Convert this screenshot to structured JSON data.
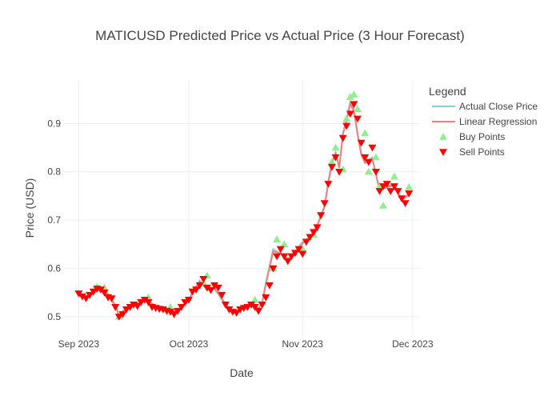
{
  "chart_data": {
    "type": "line",
    "title": "MATICUSD Predicted Price vs Actual Price (3 Hour Forecast)",
    "xlabel": "Date",
    "ylabel": "Price (USD)",
    "x_range": [
      "2023-08-28",
      "2023-12-03"
    ],
    "ylim": [
      0.46,
      0.99
    ],
    "x_ticks": [
      {
        "date": "2023-09-01",
        "label": "Sep 2023"
      },
      {
        "date": "2023-10-01",
        "label": "Oct 2023"
      },
      {
        "date": "2023-11-01",
        "label": "Nov 2023"
      },
      {
        "date": "2023-12-01",
        "label": "Dec 2023"
      }
    ],
    "y_ticks": [
      0.5,
      0.6,
      0.7,
      0.8,
      0.9
    ],
    "grid": true,
    "legend_title": "Legend",
    "legend_position": "right",
    "colors": {
      "actual": "#7fd4d4",
      "regression": "#f08080",
      "buy": "#90ee90",
      "sell": "#ff0000"
    },
    "series": [
      {
        "name": "Actual Close Price",
        "style": "line",
        "x": [
          "2023-09-01",
          "2023-09-03",
          "2023-09-05",
          "2023-09-07",
          "2023-09-09",
          "2023-09-11",
          "2023-09-12",
          "2023-09-13",
          "2023-09-15",
          "2023-09-17",
          "2023-09-19",
          "2023-09-21",
          "2023-09-23",
          "2023-09-25",
          "2023-09-27",
          "2023-09-29",
          "2023-10-01",
          "2023-10-02",
          "2023-10-04",
          "2023-10-06",
          "2023-10-08",
          "2023-10-10",
          "2023-10-12",
          "2023-10-14",
          "2023-10-16",
          "2023-10-18",
          "2023-10-20",
          "2023-10-21",
          "2023-10-22",
          "2023-10-24",
          "2023-10-26",
          "2023-10-28",
          "2023-10-30",
          "2023-11-01",
          "2023-11-03",
          "2023-11-05",
          "2023-11-07",
          "2023-11-08",
          "2023-11-09",
          "2023-11-10",
          "2023-11-11",
          "2023-11-12",
          "2023-11-13",
          "2023-11-14",
          "2023-11-15",
          "2023-11-16",
          "2023-11-17",
          "2023-11-18",
          "2023-11-20",
          "2023-11-22",
          "2023-11-24",
          "2023-11-26",
          "2023-11-28",
          "2023-11-30"
        ],
        "y": [
          0.545,
          0.54,
          0.55,
          0.56,
          0.545,
          0.52,
          0.505,
          0.51,
          0.52,
          0.525,
          0.535,
          0.525,
          0.515,
          0.515,
          0.51,
          0.52,
          0.535,
          0.55,
          0.575,
          0.555,
          0.56,
          0.535,
          0.515,
          0.51,
          0.52,
          0.525,
          0.515,
          0.53,
          0.57,
          0.64,
          0.63,
          0.62,
          0.635,
          0.655,
          0.665,
          0.69,
          0.73,
          0.78,
          0.82,
          0.84,
          0.81,
          0.88,
          0.91,
          0.945,
          0.93,
          0.88,
          0.84,
          0.82,
          0.83,
          0.76,
          0.77,
          0.775,
          0.74,
          0.755
        ]
      },
      {
        "name": "Linear Regression",
        "style": "line",
        "x": [
          "2023-09-01",
          "2023-09-03",
          "2023-09-05",
          "2023-09-07",
          "2023-09-09",
          "2023-09-11",
          "2023-09-12",
          "2023-09-13",
          "2023-09-15",
          "2023-09-17",
          "2023-09-19",
          "2023-09-21",
          "2023-09-23",
          "2023-09-25",
          "2023-09-27",
          "2023-09-29",
          "2023-10-01",
          "2023-10-02",
          "2023-10-04",
          "2023-10-06",
          "2023-10-08",
          "2023-10-10",
          "2023-10-12",
          "2023-10-14",
          "2023-10-16",
          "2023-10-18",
          "2023-10-20",
          "2023-10-21",
          "2023-10-22",
          "2023-10-24",
          "2023-10-26",
          "2023-10-28",
          "2023-10-30",
          "2023-11-01",
          "2023-11-03",
          "2023-11-05",
          "2023-11-07",
          "2023-11-08",
          "2023-11-09",
          "2023-11-10",
          "2023-11-11",
          "2023-11-12",
          "2023-11-13",
          "2023-11-14",
          "2023-11-15",
          "2023-11-16",
          "2023-11-17",
          "2023-11-18",
          "2023-11-20",
          "2023-11-22",
          "2023-11-24",
          "2023-11-26",
          "2023-11-28",
          "2023-11-30"
        ],
        "y": [
          0.547,
          0.542,
          0.548,
          0.558,
          0.547,
          0.523,
          0.503,
          0.512,
          0.518,
          0.527,
          0.533,
          0.527,
          0.517,
          0.513,
          0.512,
          0.518,
          0.533,
          0.552,
          0.572,
          0.557,
          0.558,
          0.537,
          0.517,
          0.508,
          0.518,
          0.527,
          0.517,
          0.528,
          0.567,
          0.635,
          0.632,
          0.618,
          0.633,
          0.652,
          0.662,
          0.688,
          0.728,
          0.775,
          0.818,
          0.838,
          0.808,
          0.878,
          0.905,
          0.94,
          0.925,
          0.877,
          0.835,
          0.818,
          0.827,
          0.762,
          0.768,
          0.772,
          0.742,
          0.753
        ]
      },
      {
        "name": "Buy Points",
        "style": "marker",
        "x": [
          "2023-09-06",
          "2023-09-08",
          "2023-09-12",
          "2023-09-20",
          "2023-09-26",
          "2023-10-05",
          "2023-10-06",
          "2023-10-19",
          "2023-10-24",
          "2023-10-25",
          "2023-10-27",
          "2023-11-01",
          "2023-11-04",
          "2023-11-09",
          "2023-11-10",
          "2023-11-12",
          "2023-11-13",
          "2023-11-14",
          "2023-11-15",
          "2023-11-16",
          "2023-11-18",
          "2023-11-19",
          "2023-11-21",
          "2023-11-22",
          "2023-11-23",
          "2023-11-26",
          "2023-11-30"
        ],
        "y": [
          0.562,
          0.56,
          0.5,
          0.54,
          0.52,
          0.57,
          0.585,
          0.535,
          0.6,
          0.66,
          0.65,
          0.64,
          0.67,
          0.82,
          0.85,
          0.805,
          0.91,
          0.955,
          0.96,
          0.93,
          0.88,
          0.8,
          0.83,
          0.77,
          0.73,
          0.79,
          0.768
        ]
      },
      {
        "name": "Sell Points",
        "style": "marker",
        "x": [
          "2023-09-01",
          "2023-09-02",
          "2023-09-03",
          "2023-09-04",
          "2023-09-05",
          "2023-09-06",
          "2023-09-07",
          "2023-09-08",
          "2023-09-09",
          "2023-09-10",
          "2023-09-11",
          "2023-09-12",
          "2023-09-13",
          "2023-09-14",
          "2023-09-15",
          "2023-09-16",
          "2023-09-17",
          "2023-09-18",
          "2023-09-19",
          "2023-09-20",
          "2023-09-21",
          "2023-09-22",
          "2023-09-23",
          "2023-09-24",
          "2023-09-25",
          "2023-09-26",
          "2023-09-27",
          "2023-09-28",
          "2023-09-29",
          "2023-09-30",
          "2023-10-01",
          "2023-10-02",
          "2023-10-03",
          "2023-10-04",
          "2023-10-05",
          "2023-10-06",
          "2023-10-07",
          "2023-10-08",
          "2023-10-09",
          "2023-10-10",
          "2023-10-11",
          "2023-10-12",
          "2023-10-13",
          "2023-10-14",
          "2023-10-15",
          "2023-10-16",
          "2023-10-17",
          "2023-10-18",
          "2023-10-19",
          "2023-10-20",
          "2023-10-21",
          "2023-10-22",
          "2023-10-23",
          "2023-10-24",
          "2023-10-25",
          "2023-10-26",
          "2023-10-27",
          "2023-10-28",
          "2023-10-29",
          "2023-10-30",
          "2023-10-31",
          "2023-11-01",
          "2023-11-02",
          "2023-11-03",
          "2023-11-04",
          "2023-11-05",
          "2023-11-06",
          "2023-11-07",
          "2023-11-08",
          "2023-11-09",
          "2023-11-10",
          "2023-11-11",
          "2023-11-12",
          "2023-11-13",
          "2023-11-14",
          "2023-11-15",
          "2023-11-16",
          "2023-11-17",
          "2023-11-18",
          "2023-11-19",
          "2023-11-20",
          "2023-11-21",
          "2023-11-22",
          "2023-11-23",
          "2023-11-24",
          "2023-11-25",
          "2023-11-26",
          "2023-11-27",
          "2023-11-28",
          "2023-11-29",
          "2023-11-30"
        ],
        "y": [
          0.548,
          0.542,
          0.538,
          0.545,
          0.552,
          0.558,
          0.556,
          0.55,
          0.54,
          0.538,
          0.52,
          0.5,
          0.505,
          0.515,
          0.52,
          0.525,
          0.522,
          0.53,
          0.535,
          0.53,
          0.52,
          0.518,
          0.516,
          0.515,
          0.512,
          0.51,
          0.505,
          0.512,
          0.52,
          0.53,
          0.535,
          0.552,
          0.556,
          0.565,
          0.578,
          0.56,
          0.555,
          0.565,
          0.56,
          0.545,
          0.525,
          0.515,
          0.51,
          0.508,
          0.515,
          0.518,
          0.52,
          0.525,
          0.52,
          0.512,
          0.525,
          0.54,
          0.565,
          0.6,
          0.625,
          0.64,
          0.625,
          0.615,
          0.625,
          0.632,
          0.64,
          0.63,
          0.655,
          0.665,
          0.675,
          0.685,
          0.71,
          0.735,
          0.775,
          0.81,
          0.83,
          0.8,
          0.87,
          0.895,
          0.92,
          0.94,
          0.91,
          0.86,
          0.83,
          0.82,
          0.85,
          0.8,
          0.76,
          0.77,
          0.775,
          0.76,
          0.77,
          0.76,
          0.745,
          0.735,
          0.755
        ]
      }
    ]
  }
}
